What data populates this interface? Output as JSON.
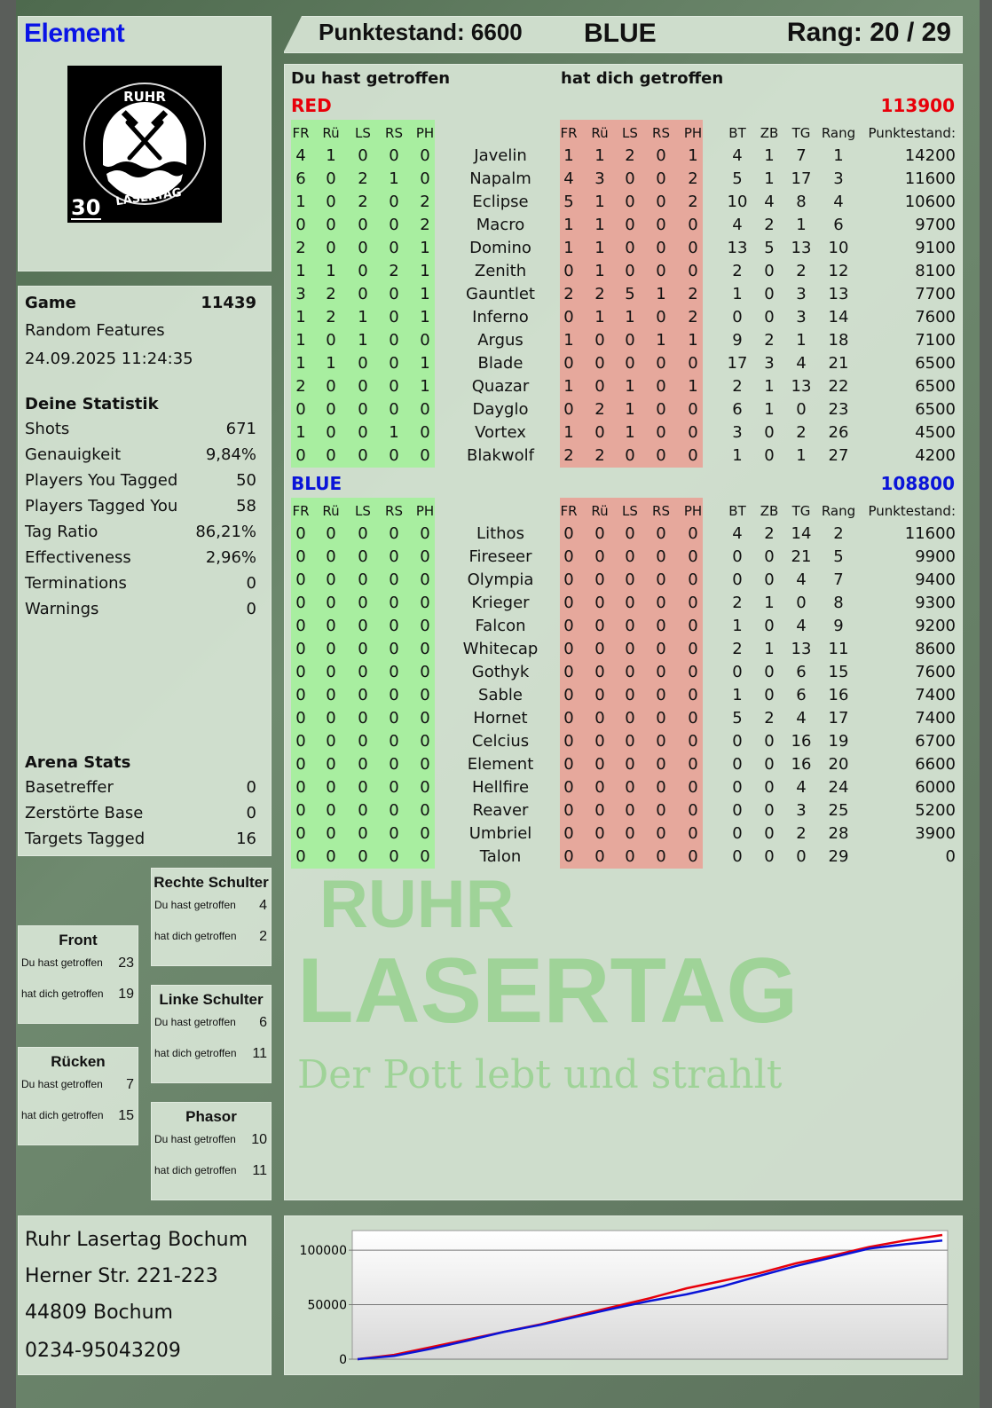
{
  "player": {
    "name": "Element"
  },
  "header": {
    "score_label": "Punktestand: 6600",
    "team": "BLUE",
    "rank_label": "Rang: 20 / 29"
  },
  "logo": {
    "text_top": "RUHR",
    "text_bottom": "LASERTAG",
    "badge": "30"
  },
  "game": {
    "label": "Game",
    "id": "11439",
    "mode": "Random Features",
    "datetime": "24.09.2025 11:24:35"
  },
  "stats": {
    "title": "Deine Statistik",
    "items": [
      {
        "label": "Shots",
        "value": "671"
      },
      {
        "label": "Genauigkeit",
        "value": "9,84%"
      },
      {
        "label": "Players You Tagged",
        "value": "50"
      },
      {
        "label": "Players Tagged You",
        "value": "58"
      },
      {
        "label": "Tag Ratio",
        "value": "86,21%"
      },
      {
        "label": "Effectiveness",
        "value": "2,96%"
      },
      {
        "label": "Terminations",
        "value": "0"
      },
      {
        "label": "Warnings",
        "value": "0"
      }
    ]
  },
  "arena": {
    "title": "Arena Stats",
    "items": [
      {
        "label": "Basetreffer",
        "value": "0"
      },
      {
        "label": "Zerstörte Base",
        "value": "0"
      },
      {
        "label": "Targets Tagged",
        "value": "16"
      }
    ]
  },
  "zones": [
    {
      "title": "Rechte Schulter",
      "hit_label": "Du hast getroffen",
      "hit": "4",
      "got_label": "hat dich getroffen",
      "got": "2"
    },
    {
      "title": "Front",
      "hit_label": "Du hast getroffen",
      "hit": "23",
      "got_label": "hat dich getroffen",
      "got": "19"
    },
    {
      "title": "Linke Schulter",
      "hit_label": "Du hast getroffen",
      "hit": "6",
      "got_label": "hat dich getroffen",
      "got": "11"
    },
    {
      "title": "Rücken",
      "hit_label": "Du hast getroffen",
      "hit": "7",
      "got_label": "hat dich getroffen",
      "got": "15"
    },
    {
      "title": "Phasor",
      "hit_label": "Du hast getroffen",
      "hit": "10",
      "got_label": "hat dich getroffen",
      "got": "11"
    }
  ],
  "address": {
    "lines": [
      "Ruhr Lasertag Bochum",
      "Herner Str. 221-223",
      "44809 Bochum",
      "0234-95043209"
    ]
  },
  "main": {
    "you_hit_label": "Du hast getroffen",
    "hit_you_label": "hat dich getroffen",
    "columns": {
      "hit": [
        "FR",
        "Rü",
        "LS",
        "RS",
        "PH"
      ],
      "got": [
        "FR",
        "Rü",
        "LS",
        "RS",
        "PH"
      ],
      "extra": [
        "BT",
        "ZB",
        "TG",
        "Rang"
      ],
      "score": "Punktestand:"
    },
    "teams": [
      {
        "name": "RED",
        "total": "113900",
        "color": "#e8000a",
        "players": [
          [
            "Javelin",
            [
              4,
              1,
              0,
              0,
              0
            ],
            [
              1,
              1,
              2,
              0,
              1
            ],
            [
              4,
              1,
              7,
              1
            ],
            14200
          ],
          [
            "Napalm",
            [
              6,
              0,
              2,
              1,
              0
            ],
            [
              4,
              3,
              0,
              0,
              2
            ],
            [
              5,
              1,
              17,
              3
            ],
            11600
          ],
          [
            "Eclipse",
            [
              1,
              0,
              2,
              0,
              2
            ],
            [
              5,
              1,
              0,
              0,
              2
            ],
            [
              10,
              4,
              8,
              4
            ],
            10600
          ],
          [
            "Macro",
            [
              0,
              0,
              0,
              0,
              2
            ],
            [
              1,
              1,
              0,
              0,
              0
            ],
            [
              4,
              2,
              1,
              6
            ],
            9700
          ],
          [
            "Domino",
            [
              2,
              0,
              0,
              0,
              1
            ],
            [
              1,
              1,
              0,
              0,
              0
            ],
            [
              13,
              5,
              13,
              10
            ],
            9100
          ],
          [
            "Zenith",
            [
              1,
              1,
              0,
              2,
              1
            ],
            [
              0,
              1,
              0,
              0,
              0
            ],
            [
              2,
              0,
              2,
              12
            ],
            8100
          ],
          [
            "Gauntlet",
            [
              3,
              2,
              0,
              0,
              1
            ],
            [
              2,
              2,
              5,
              1,
              2
            ],
            [
              1,
              0,
              3,
              13
            ],
            7700
          ],
          [
            "Inferno",
            [
              1,
              2,
              1,
              0,
              1
            ],
            [
              0,
              1,
              1,
              0,
              2
            ],
            [
              0,
              0,
              3,
              14
            ],
            7600
          ],
          [
            "Argus",
            [
              1,
              0,
              1,
              0,
              0
            ],
            [
              1,
              0,
              0,
              1,
              1
            ],
            [
              9,
              2,
              1,
              18
            ],
            7100
          ],
          [
            "Blade",
            [
              1,
              1,
              0,
              0,
              1
            ],
            [
              0,
              0,
              0,
              0,
              0
            ],
            [
              17,
              3,
              4,
              21
            ],
            6500
          ],
          [
            "Quazar",
            [
              2,
              0,
              0,
              0,
              1
            ],
            [
              1,
              0,
              1,
              0,
              1
            ],
            [
              2,
              1,
              13,
              22
            ],
            6500
          ],
          [
            "Dayglo",
            [
              0,
              0,
              0,
              0,
              0
            ],
            [
              0,
              2,
              1,
              0,
              0
            ],
            [
              6,
              1,
              0,
              23
            ],
            6500
          ],
          [
            "Vortex",
            [
              1,
              0,
              0,
              1,
              0
            ],
            [
              1,
              0,
              1,
              0,
              0
            ],
            [
              3,
              0,
              2,
              26
            ],
            4500
          ],
          [
            "Blakwolf",
            [
              0,
              0,
              0,
              0,
              0
            ],
            [
              2,
              2,
              0,
              0,
              0
            ],
            [
              1,
              0,
              1,
              27
            ],
            4200
          ]
        ]
      },
      {
        "name": "BLUE",
        "total": "108800",
        "color": "#0a14d8",
        "players": [
          [
            "Lithos",
            [
              0,
              0,
              0,
              0,
              0
            ],
            [
              0,
              0,
              0,
              0,
              0
            ],
            [
              4,
              2,
              14,
              2
            ],
            11600
          ],
          [
            "Fireseer",
            [
              0,
              0,
              0,
              0,
              0
            ],
            [
              0,
              0,
              0,
              0,
              0
            ],
            [
              0,
              0,
              21,
              5
            ],
            9900
          ],
          [
            "Olympia",
            [
              0,
              0,
              0,
              0,
              0
            ],
            [
              0,
              0,
              0,
              0,
              0
            ],
            [
              0,
              0,
              4,
              7
            ],
            9400
          ],
          [
            "Krieger",
            [
              0,
              0,
              0,
              0,
              0
            ],
            [
              0,
              0,
              0,
              0,
              0
            ],
            [
              2,
              1,
              0,
              8
            ],
            9300
          ],
          [
            "Falcon",
            [
              0,
              0,
              0,
              0,
              0
            ],
            [
              0,
              0,
              0,
              0,
              0
            ],
            [
              1,
              0,
              4,
              9
            ],
            9200
          ],
          [
            "Whitecap",
            [
              0,
              0,
              0,
              0,
              0
            ],
            [
              0,
              0,
              0,
              0,
              0
            ],
            [
              2,
              1,
              13,
              11
            ],
            8600
          ],
          [
            "Gothyk",
            [
              0,
              0,
              0,
              0,
              0
            ],
            [
              0,
              0,
              0,
              0,
              0
            ],
            [
              0,
              0,
              6,
              15
            ],
            7600
          ],
          [
            "Sable",
            [
              0,
              0,
              0,
              0,
              0
            ],
            [
              0,
              0,
              0,
              0,
              0
            ],
            [
              1,
              0,
              6,
              16
            ],
            7400
          ],
          [
            "Hornet",
            [
              0,
              0,
              0,
              0,
              0
            ],
            [
              0,
              0,
              0,
              0,
              0
            ],
            [
              5,
              2,
              4,
              17
            ],
            7400
          ],
          [
            "Celcius",
            [
              0,
              0,
              0,
              0,
              0
            ],
            [
              0,
              0,
              0,
              0,
              0
            ],
            [
              0,
              0,
              16,
              19
            ],
            6700
          ],
          [
            "Element",
            [
              0,
              0,
              0,
              0,
              0
            ],
            [
              0,
              0,
              0,
              0,
              0
            ],
            [
              0,
              0,
              16,
              20
            ],
            6600
          ],
          [
            "Hellfire",
            [
              0,
              0,
              0,
              0,
              0
            ],
            [
              0,
              0,
              0,
              0,
              0
            ],
            [
              0,
              0,
              4,
              24
            ],
            6000
          ],
          [
            "Reaver",
            [
              0,
              0,
              0,
              0,
              0
            ],
            [
              0,
              0,
              0,
              0,
              0
            ],
            [
              0,
              0,
              3,
              25
            ],
            5200
          ],
          [
            "Umbriel",
            [
              0,
              0,
              0,
              0,
              0
            ],
            [
              0,
              0,
              0,
              0,
              0
            ],
            [
              0,
              0,
              2,
              28
            ],
            3900
          ],
          [
            "Talon",
            [
              0,
              0,
              0,
              0,
              0
            ],
            [
              0,
              0,
              0,
              0,
              0
            ],
            [
              0,
              0,
              0,
              29
            ],
            0
          ]
        ]
      }
    ]
  },
  "watermark": {
    "line1": "RUHR",
    "line2": "LASERTAG",
    "slogan": "Der Pott lebt und strahlt"
  },
  "colors": {
    "hit_bg": "#a8eea0",
    "got_bg": "#e6a89c",
    "red": "#e8000a",
    "blue": "#0a14d8"
  },
  "chart_data": {
    "type": "line",
    "title": "",
    "xlabel": "",
    "ylabel": "",
    "ylim": [
      0,
      118000
    ],
    "yticks": [
      0,
      50000,
      100000
    ],
    "grid": true,
    "series": [
      {
        "color": "#e8000a",
        "values": [
          0,
          4000,
          11000,
          18000,
          25000,
          32000,
          40000,
          48000,
          56000,
          65000,
          72000,
          79000,
          88000,
          95000,
          103000,
          109000,
          113900
        ]
      },
      {
        "color": "#0a14d8",
        "values": [
          0,
          3000,
          9500,
          17000,
          25000,
          31500,
          39000,
          46500,
          53500,
          59500,
          67000,
          76500,
          85500,
          93500,
          101500,
          105500,
          108800
        ]
      }
    ]
  }
}
